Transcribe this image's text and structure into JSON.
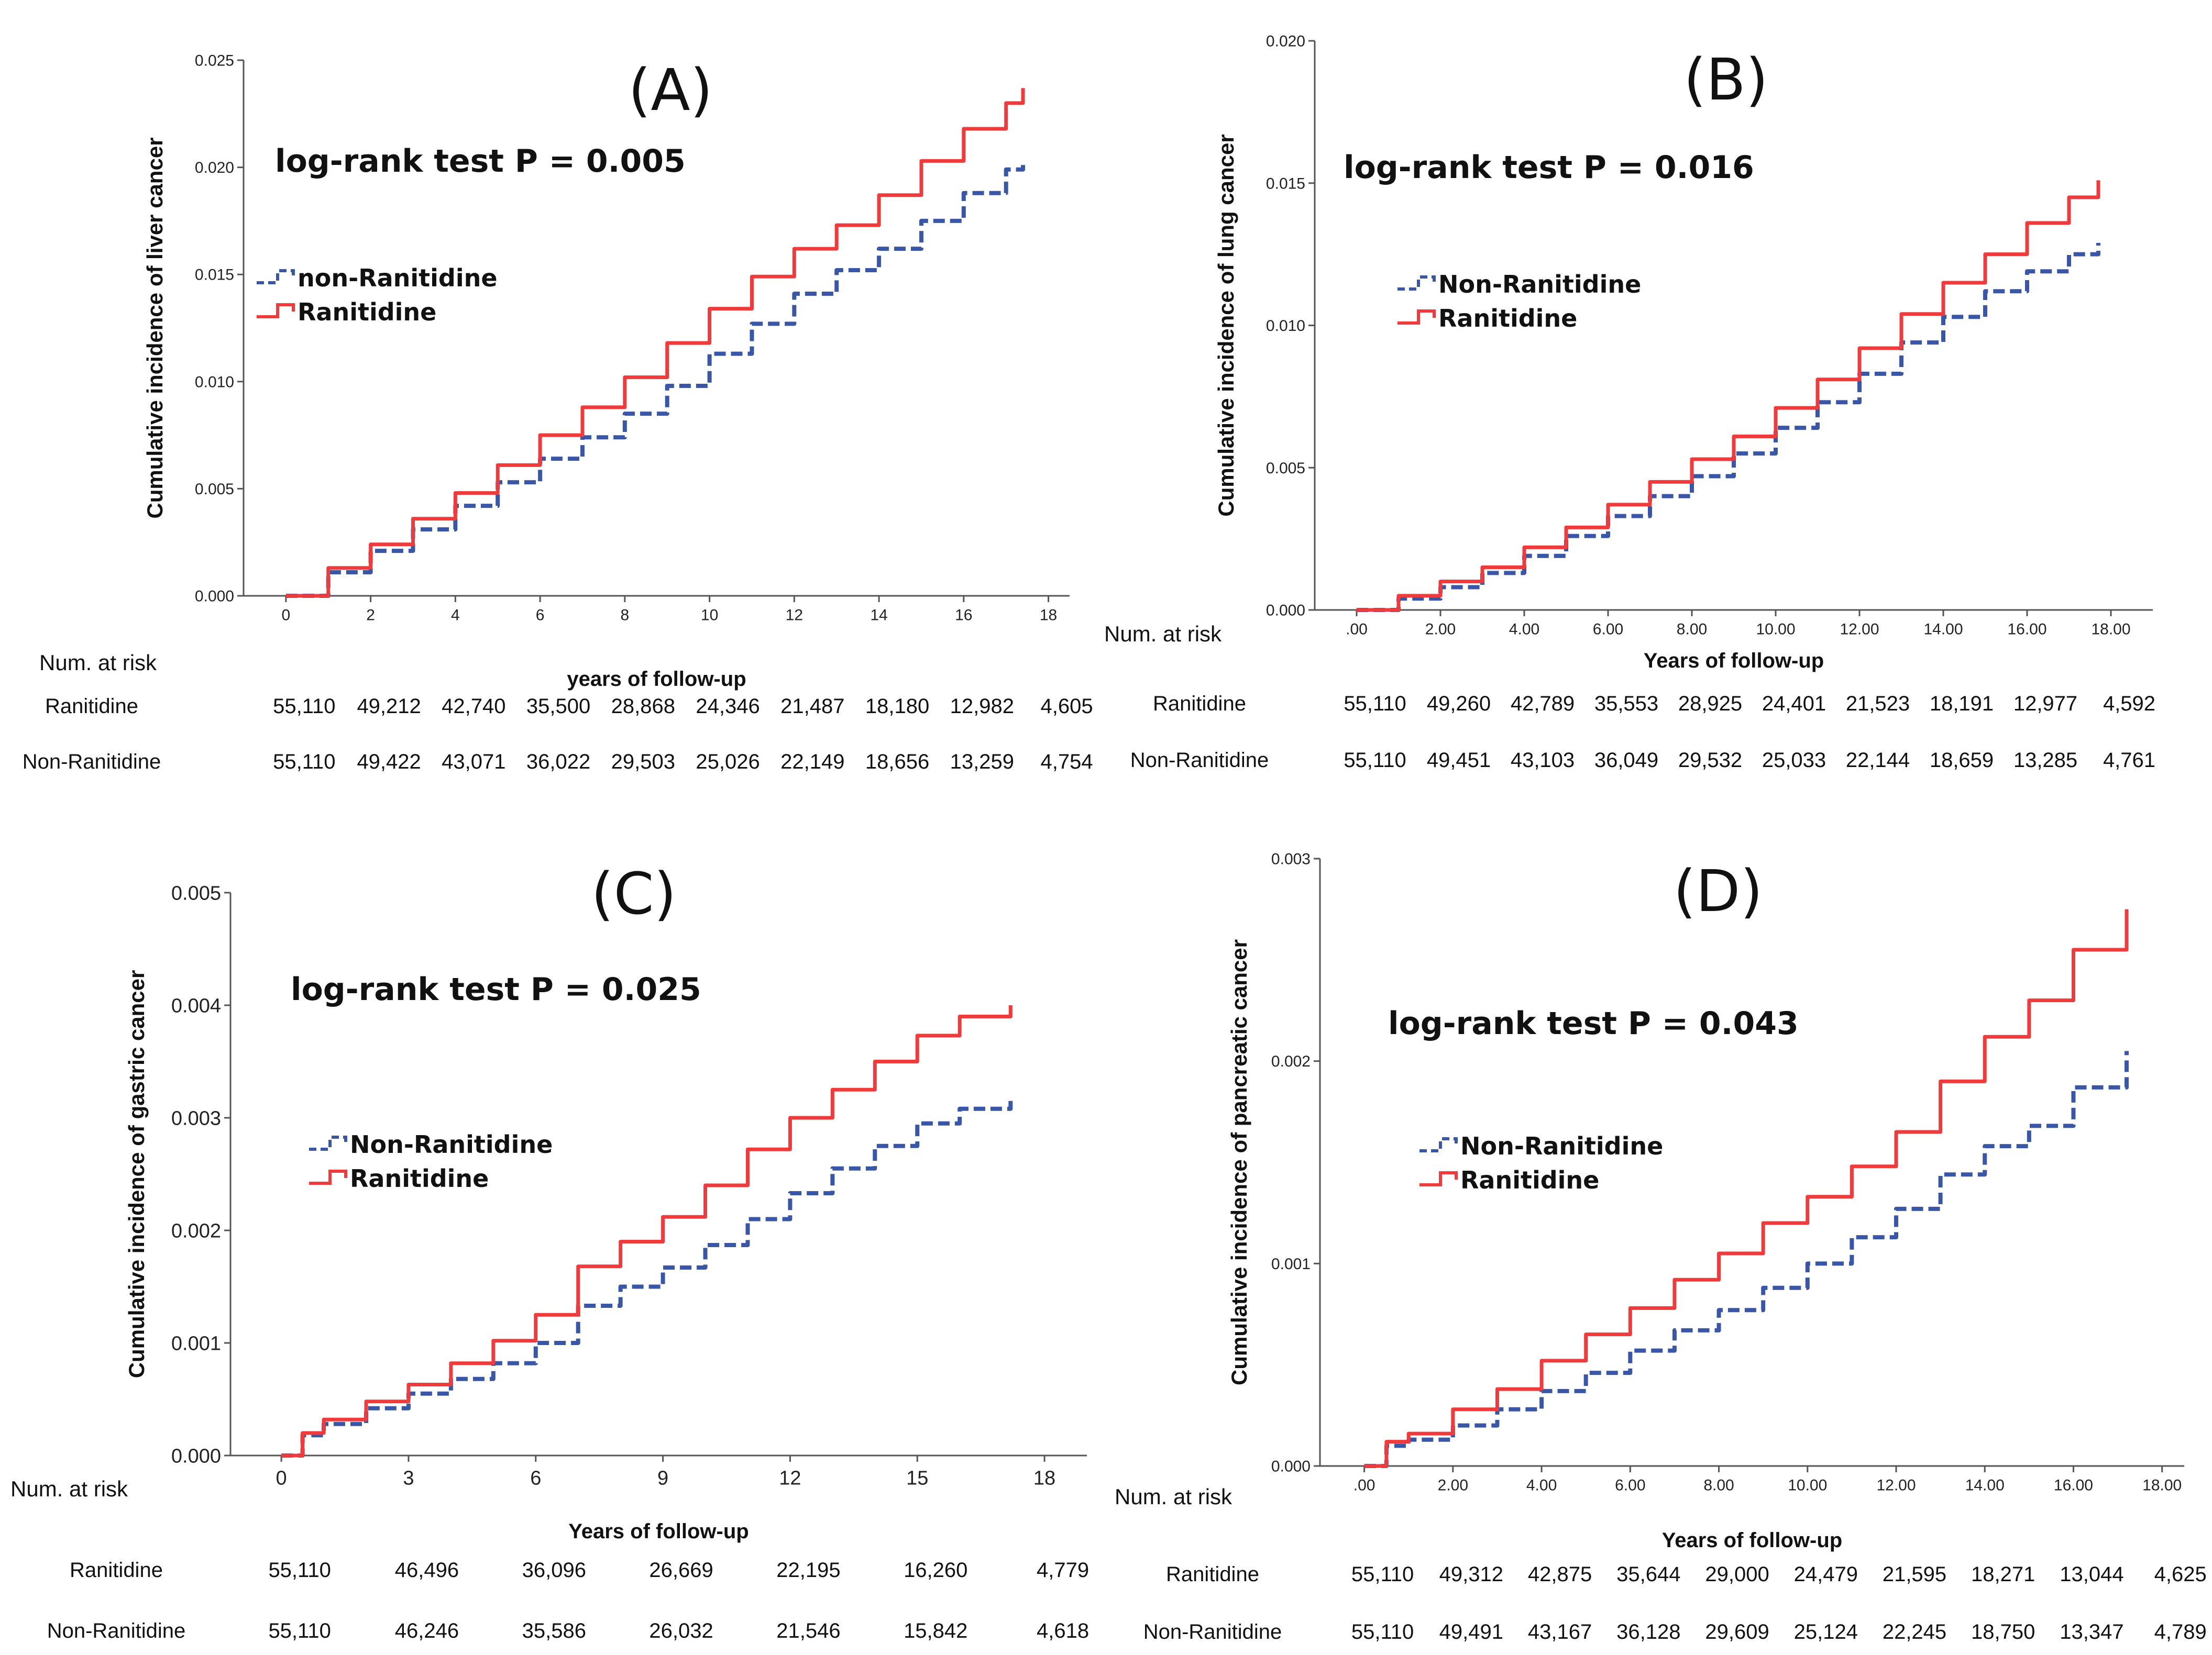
{
  "colors": {
    "ranitidine": "#ef3b3b",
    "non_ranitidine": "#3a56a6"
  },
  "chart_data": [
    {
      "type": "line",
      "panel_label": "(A)",
      "annotation": "log-rank test P = 0.005",
      "ylabel": "Cumulative incidence of liver cancer",
      "xlabel": "years of follow-up",
      "xlim": [
        -1,
        18.5
      ],
      "ylim": [
        0,
        0.025
      ],
      "xticks": [
        0,
        2,
        4,
        6,
        8,
        10,
        12,
        14,
        16,
        18
      ],
      "xtick_labels": [
        "0",
        "2",
        "4",
        "6",
        "8",
        "10",
        "12",
        "14",
        "16",
        "18"
      ],
      "yticks": [
        0,
        0.005,
        0.01,
        0.015,
        0.02,
        0.025
      ],
      "ytick_labels": [
        "0.000",
        "0.005",
        "0.010",
        "0.015",
        "0.020",
        "0.025"
      ],
      "legend": [
        "non-Ranitidine",
        "Ranitidine"
      ],
      "series": [
        {
          "name": "non-Ranitidine",
          "style": "dashed",
          "x": [
            0,
            1,
            2,
            3,
            4,
            5,
            6,
            7,
            8,
            9,
            10,
            11,
            12,
            13,
            14,
            15,
            16,
            17,
            17.4
          ],
          "y": [
            0,
            0.0011,
            0.0021,
            0.0031,
            0.0042,
            0.0053,
            0.0064,
            0.0074,
            0.0085,
            0.0098,
            0.0113,
            0.0127,
            0.0141,
            0.0152,
            0.0162,
            0.0175,
            0.0188,
            0.0199,
            0.0203
          ]
        },
        {
          "name": "Ranitidine",
          "style": "solid",
          "x": [
            0,
            1,
            2,
            3,
            4,
            5,
            6,
            7,
            8,
            9,
            10,
            11,
            12,
            13,
            14,
            15,
            16,
            17,
            17.4
          ],
          "y": [
            0,
            0.0013,
            0.0024,
            0.0036,
            0.0048,
            0.0061,
            0.0075,
            0.0088,
            0.0102,
            0.0118,
            0.0134,
            0.0149,
            0.0162,
            0.0173,
            0.0187,
            0.0203,
            0.0218,
            0.023,
            0.0237
          ]
        }
      ],
      "risk_table": {
        "title": "Num. at risk",
        "rows": [
          {
            "label": "Ranitidine",
            "values": [
              "55,110",
              "49,212",
              "42,740",
              "35,500",
              "28,868",
              "24,346",
              "21,487",
              "18,180",
              "12,982",
              "4,605"
            ]
          },
          {
            "label": "Non-Ranitidine",
            "values": [
              "55,110",
              "49,422",
              "43,071",
              "36,022",
              "29,503",
              "25,026",
              "22,149",
              "18,656",
              "13,259",
              "4,754"
            ]
          }
        ]
      }
    },
    {
      "type": "line",
      "panel_label": "(B)",
      "annotation": "log-rank test P = 0.016",
      "ylabel": "Cumulative incidence of lung cancer",
      "xlabel": "Years of follow-up",
      "xlim": [
        -1,
        19
      ],
      "ylim": [
        0,
        0.02
      ],
      "xticks": [
        0,
        2,
        4,
        6,
        8,
        10,
        12,
        14,
        16,
        18
      ],
      "xtick_labels": [
        ".00",
        "2.00",
        "4.00",
        "6.00",
        "8.00",
        "10.00",
        "12.00",
        "14.00",
        "16.00",
        "18.00"
      ],
      "yticks": [
        0,
        0.005,
        0.01,
        0.015,
        0.02
      ],
      "ytick_labels": [
        "0.000",
        "0.005",
        "0.010",
        "0.015",
        "0.020"
      ],
      "legend": [
        "Non-Ranitidine",
        "Ranitidine"
      ],
      "series": [
        {
          "name": "Non-Ranitidine",
          "style": "dashed",
          "x": [
            0,
            1,
            2,
            3,
            4,
            5,
            6,
            7,
            8,
            9,
            10,
            11,
            12,
            13,
            14,
            15,
            16,
            17,
            17.7
          ],
          "y": [
            0,
            0.0004,
            0.0008,
            0.0013,
            0.0019,
            0.0026,
            0.0033,
            0.004,
            0.0047,
            0.0055,
            0.0064,
            0.0073,
            0.0083,
            0.0094,
            0.0103,
            0.0112,
            0.0119,
            0.0125,
            0.0129
          ]
        },
        {
          "name": "Ranitidine",
          "style": "solid",
          "x": [
            0,
            1,
            2,
            3,
            4,
            5,
            6,
            7,
            8,
            9,
            10,
            11,
            12,
            13,
            14,
            15,
            16,
            17,
            17.7
          ],
          "y": [
            0,
            0.0005,
            0.001,
            0.0015,
            0.0022,
            0.0029,
            0.0037,
            0.0045,
            0.0053,
            0.0061,
            0.0071,
            0.0081,
            0.0092,
            0.0104,
            0.0115,
            0.0125,
            0.0136,
            0.0145,
            0.0151
          ]
        }
      ],
      "risk_table": {
        "title": "Num. at risk",
        "rows": [
          {
            "label": "Ranitidine",
            "values": [
              "55,110",
              "49,260",
              "42,789",
              "35,553",
              "28,925",
              "24,401",
              "21,523",
              "18,191",
              "12,977",
              "4,592"
            ]
          },
          {
            "label": "Non-Ranitidine",
            "values": [
              "55,110",
              "49,451",
              "43,103",
              "36,049",
              "29,532",
              "25,033",
              "22,144",
              "18,659",
              "13,285",
              "4,761"
            ]
          }
        ]
      }
    },
    {
      "type": "line",
      "panel_label": "(C)",
      "annotation": "log-rank test P = 0.025",
      "ylabel": "Cumulative incidence of gastric cancer",
      "xlabel": "Years of follow-up",
      "xlim": [
        -1.2,
        19
      ],
      "ylim": [
        0,
        0.005
      ],
      "xticks": [
        0,
        3,
        6,
        9,
        12,
        15,
        18
      ],
      "xtick_labels": [
        "0",
        "3",
        "6",
        "9",
        "12",
        "15",
        "18"
      ],
      "yticks": [
        0,
        0.001,
        0.002,
        0.003,
        0.004,
        0.005
      ],
      "ytick_labels": [
        "0.000",
        "0.001",
        "0.002",
        "0.003",
        "0.004",
        "0.005"
      ],
      "legend": [
        "Non-Ranitidine",
        "Ranitidine"
      ],
      "series": [
        {
          "name": "Non-Ranitidine",
          "style": "dashed",
          "x": [
            0,
            0.5,
            1,
            2,
            3,
            4,
            5,
            6,
            7,
            8,
            9,
            10,
            11,
            12,
            13,
            14,
            15,
            16,
            17.2
          ],
          "y": [
            0,
            0.00018,
            0.00028,
            0.00042,
            0.00055,
            0.00068,
            0.00082,
            0.001,
            0.00133,
            0.0015,
            0.00167,
            0.00187,
            0.0021,
            0.00233,
            0.00255,
            0.00275,
            0.00295,
            0.00308,
            0.00315
          ]
        },
        {
          "name": "Ranitidine",
          "style": "solid",
          "x": [
            0,
            0.5,
            1,
            2,
            3,
            4,
            5,
            6,
            7,
            8,
            9,
            10,
            11,
            12,
            13,
            14,
            15,
            16,
            17.2
          ],
          "y": [
            0,
            0.0002,
            0.00032,
            0.00048,
            0.00063,
            0.00082,
            0.00102,
            0.00125,
            0.00168,
            0.0019,
            0.00212,
            0.0024,
            0.00272,
            0.003,
            0.00325,
            0.0035,
            0.00373,
            0.0039,
            0.004
          ]
        }
      ],
      "risk_table": {
        "title": "Num. at risk",
        "rows": [
          {
            "label": "Ranitidine",
            "values": [
              "55,110",
              "46,496",
              "36,096",
              "26,669",
              "22,195",
              "16,260",
              "4,779"
            ]
          },
          {
            "label": "Non-Ranitidine",
            "values": [
              "55,110",
              "46,246",
              "35,586",
              "26,032",
              "21,546",
              "15,842",
              "4,618"
            ]
          }
        ]
      }
    },
    {
      "type": "line",
      "panel_label": "(D)",
      "annotation": "log-rank test P = 0.043",
      "ylabel": "Cumulative incidence of pancreatic cancer",
      "xlabel": "Years of follow-up",
      "xlim": [
        -1,
        18.5
      ],
      "ylim": [
        0,
        0.003
      ],
      "xticks": [
        0,
        2,
        4,
        6,
        8,
        10,
        12,
        14,
        16,
        18
      ],
      "xtick_labels": [
        ".00",
        "2.00",
        "4.00",
        "6.00",
        "8.00",
        "10.00",
        "12.00",
        "14.00",
        "16.00",
        "18.00"
      ],
      "yticks": [
        0,
        0.001,
        0.002,
        0.003
      ],
      "ytick_labels": [
        "0.000",
        "0.001",
        "0.002",
        "0.003"
      ],
      "legend": [
        "Non-Ranitidine",
        "Ranitidine"
      ],
      "series": [
        {
          "name": "Non-Ranitidine",
          "style": "dashed",
          "x": [
            0,
            0.5,
            1,
            2,
            3,
            4,
            5,
            6,
            7,
            8,
            9,
            10,
            11,
            12,
            13,
            14,
            15,
            16,
            17.2
          ],
          "y": [
            0,
            0.0001,
            0.00013,
            0.0002,
            0.00028,
            0.00037,
            0.00046,
            0.00057,
            0.00067,
            0.00077,
            0.00088,
            0.001,
            0.00113,
            0.00127,
            0.00144,
            0.00158,
            0.00168,
            0.00187,
            0.00205
          ]
        },
        {
          "name": "Ranitidine",
          "style": "solid",
          "x": [
            0,
            0.5,
            1,
            2,
            3,
            4,
            5,
            6,
            7,
            8,
            9,
            10,
            11,
            12,
            13,
            14,
            15,
            16,
            17.2
          ],
          "y": [
            0,
            0.00012,
            0.00016,
            0.00028,
            0.00038,
            0.00052,
            0.00065,
            0.00078,
            0.00092,
            0.00105,
            0.0012,
            0.00133,
            0.00148,
            0.00165,
            0.0019,
            0.00212,
            0.0023,
            0.00255,
            0.00275
          ]
        }
      ],
      "risk_table": {
        "title": "Num. at risk",
        "rows": [
          {
            "label": "Ranitidine",
            "values": [
              "55,110",
              "49,312",
              "42,875",
              "35,644",
              "29,000",
              "24,479",
              "21,595",
              "18,271",
              "13,044",
              "4,625"
            ]
          },
          {
            "label": "Non-Ranitidine",
            "values": [
              "55,110",
              "49,491",
              "43,167",
              "36,128",
              "29,609",
              "25,124",
              "22,245",
              "18,750",
              "13,347",
              "4,789"
            ]
          }
        ]
      }
    }
  ]
}
